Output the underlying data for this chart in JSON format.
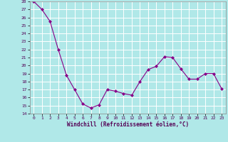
{
  "x": [
    0,
    1,
    2,
    3,
    4,
    5,
    6,
    7,
    8,
    9,
    10,
    11,
    12,
    13,
    14,
    15,
    16,
    17,
    18,
    19,
    20,
    21,
    22,
    23
  ],
  "y": [
    28,
    27,
    25.5,
    22,
    18.8,
    17,
    15.2,
    14.7,
    15.1,
    17.0,
    16.8,
    16.5,
    16.3,
    18.0,
    19.5,
    19.9,
    21.1,
    21.0,
    19.6,
    18.3,
    18.3,
    19.0,
    19.0,
    17.1
  ],
  "line_color": "#880088",
  "marker_color": "#880088",
  "bg_color": "#b0e8e8",
  "grid_color": "#ffffff",
  "xlabel": "Windchill (Refroidissement éolien,°C)",
  "xlim": [
    -0.5,
    23.5
  ],
  "ylim": [
    14,
    28
  ],
  "yticks": [
    14,
    15,
    16,
    17,
    18,
    19,
    20,
    21,
    22,
    23,
    24,
    25,
    26,
    27,
    28
  ],
  "xticks": [
    0,
    1,
    2,
    3,
    4,
    5,
    6,
    7,
    8,
    9,
    10,
    11,
    12,
    13,
    14,
    15,
    16,
    17,
    18,
    19,
    20,
    21,
    22,
    23
  ]
}
